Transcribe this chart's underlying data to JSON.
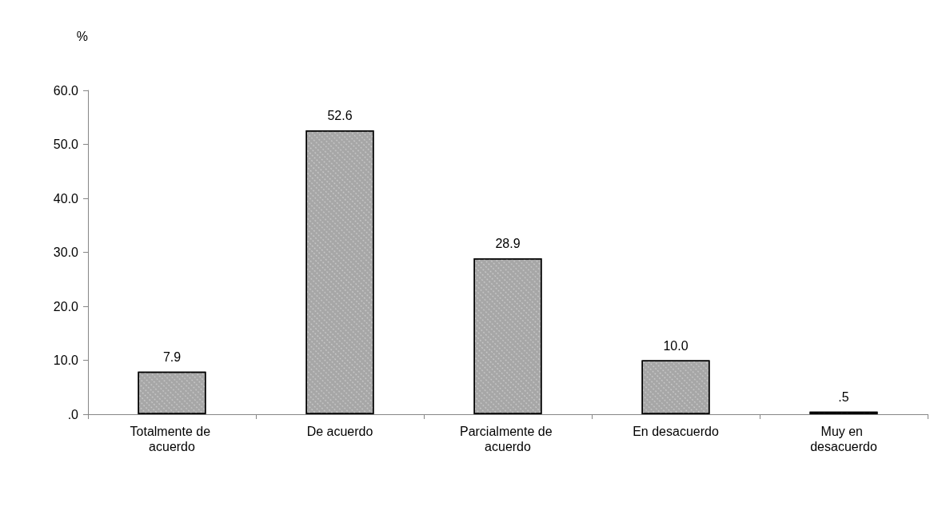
{
  "chart_data": {
    "type": "bar",
    "ylabel": "%",
    "categories": [
      "Totalmente de acuerdo",
      "De acuerdo",
      "Parcialmente de acuerdo",
      "En desacuerdo",
      "Muy en desacuerdo"
    ],
    "values": [
      7.9,
      52.6,
      28.9,
      10.0,
      0.5
    ],
    "value_labels": [
      "7.9",
      "52.6",
      "28.9",
      "10.0",
      ".5"
    ],
    "color": "#a6a6a6",
    "ylim": [
      0,
      60
    ],
    "yticks": [
      {
        "value": 0,
        "label": ".0"
      },
      {
        "value": 10,
        "label": "10.0"
      },
      {
        "value": 20,
        "label": "20.0"
      },
      {
        "value": 30,
        "label": "30.0"
      },
      {
        "value": 40,
        "label": "40.0"
      },
      {
        "value": 50,
        "label": "50.0"
      },
      {
        "value": 60,
        "label": "60.0"
      }
    ],
    "grid": false
  }
}
